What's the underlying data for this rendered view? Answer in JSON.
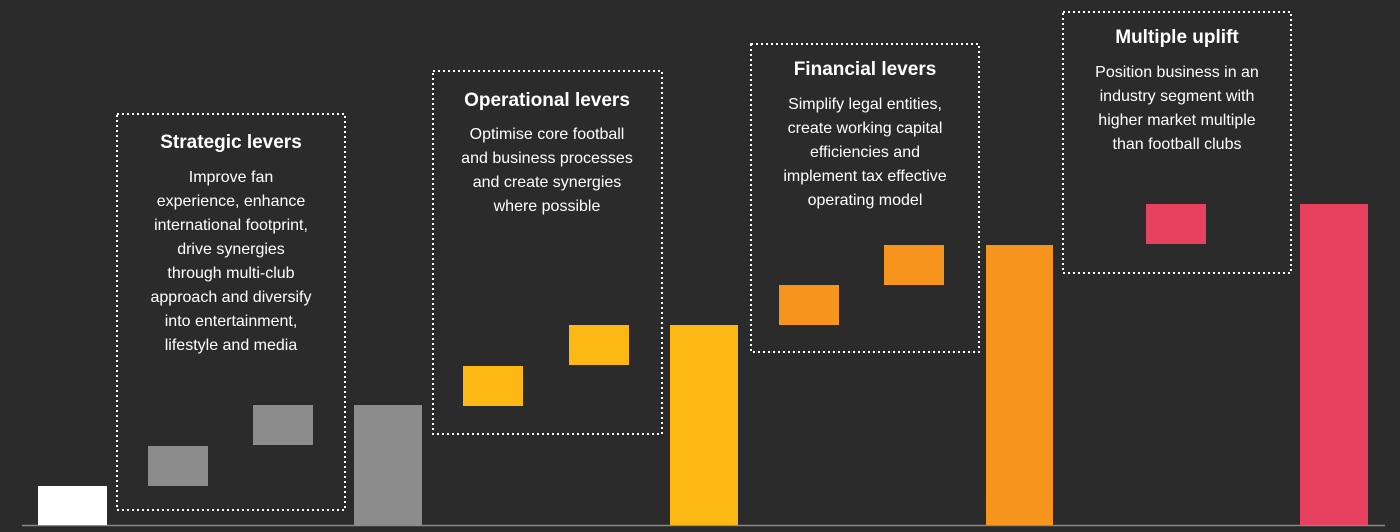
{
  "boxes": [
    {
      "title": "Strategic levers",
      "lines": [
        "Improve fan",
        "experience, enhance",
        "international footprint,",
        "drive synergies",
        "through multi-club",
        "approach and diversify",
        "into entertainment,",
        "lifestyle and media"
      ]
    },
    {
      "title": "Operational levers",
      "lines": [
        "Optimise core football",
        "and business processes",
        "and create synergies",
        "where possible"
      ]
    },
    {
      "title": "Financial levers",
      "lines": [
        "Simplify legal entities,",
        "create working capital",
        "efficiencies and",
        "implement tax effective",
        "operating model"
      ]
    },
    {
      "title": "Multiple uplift",
      "lines": [
        "Position business in an",
        "industry segment with",
        "higher market multiple",
        "than football clubs"
      ]
    }
  ]
}
